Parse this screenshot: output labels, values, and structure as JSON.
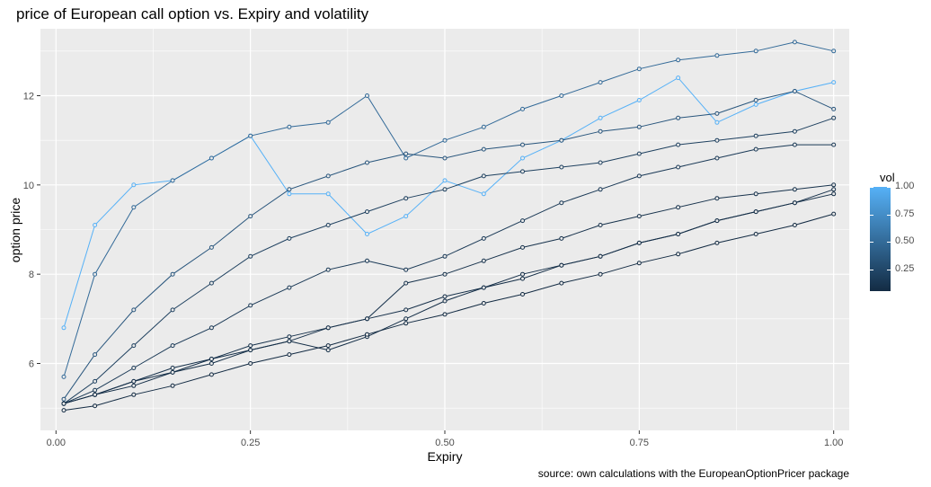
{
  "title": "price of European call option vs. Expiry and volatility",
  "caption": "source: own calculations with the EuropeanOptionPricer package",
  "chart_data": {
    "type": "line",
    "title": "price of European call option vs. Expiry and volatility",
    "xlabel": "Expiry",
    "ylabel": "option price",
    "xlim": [
      -0.02,
      1.02
    ],
    "ylim": [
      4.5,
      13.5
    ],
    "x_ticks": [
      0.0,
      0.25,
      0.5,
      0.75,
      1.0
    ],
    "x_tick_labels": [
      "0.00",
      "0.25",
      "0.50",
      "0.75",
      "1.00"
    ],
    "y_ticks": [
      6,
      8,
      10,
      12
    ],
    "y_tick_labels": [
      "6",
      "8",
      "10",
      "12"
    ],
    "grid": true,
    "markers": "open circles",
    "legend": {
      "title": "vol",
      "placement": "right",
      "type": "colorbar",
      "low_color": "#132B43",
      "high_color": "#56B1F7",
      "range": [
        0.05,
        1.0
      ],
      "ticks": [
        0.25,
        0.5,
        0.75,
        1.0
      ],
      "tick_labels": [
        "0.25",
        "0.50",
        "0.75",
        "1.00"
      ]
    },
    "x": [
      0.01,
      0.05,
      0.1,
      0.15,
      0.2,
      0.25,
      0.3,
      0.35,
      0.4,
      0.45,
      0.5,
      0.55,
      0.6,
      0.65,
      0.7,
      0.75,
      0.8,
      0.85,
      0.9,
      0.95,
      1.0
    ],
    "series": [
      {
        "vol": 1.0,
        "y": [
          6.8,
          9.1,
          10.0,
          10.1,
          10.6,
          11.1,
          9.8,
          9.8,
          8.9,
          9.3,
          10.1,
          9.8,
          10.6,
          11.0,
          11.5,
          11.9,
          12.4,
          11.4,
          11.8,
          12.1,
          12.3
        ]
      },
      {
        "vol": 0.5,
        "y": [
          5.7,
          8.0,
          9.5,
          10.1,
          10.6,
          11.1,
          11.3,
          11.4,
          12.0,
          10.6,
          11.0,
          11.3,
          11.7,
          12.0,
          12.3,
          12.6,
          12.8,
          12.9,
          13.0,
          13.2,
          13.0
        ]
      },
      {
        "vol": 0.35,
        "y": [
          5.2,
          6.2,
          7.2,
          8.0,
          8.6,
          9.3,
          9.9,
          10.2,
          10.5,
          10.7,
          10.6,
          10.8,
          10.9,
          11.0,
          11.2,
          11.3,
          11.5,
          11.6,
          11.9,
          12.1,
          11.7
        ]
      },
      {
        "vol": 0.2,
        "y": [
          5.1,
          5.6,
          6.4,
          7.2,
          7.8,
          8.4,
          8.8,
          9.1,
          9.4,
          9.7,
          9.9,
          10.2,
          10.3,
          10.4,
          10.5,
          10.7,
          10.9,
          11.0,
          11.1,
          11.2,
          11.5
        ]
      },
      {
        "vol": 0.15,
        "y": [
          5.1,
          5.4,
          5.9,
          6.4,
          6.8,
          7.3,
          7.7,
          8.1,
          8.3,
          8.1,
          8.4,
          8.8,
          9.2,
          9.6,
          9.9,
          10.2,
          10.4,
          10.6,
          10.8,
          10.9,
          10.9
        ]
      },
      {
        "vol": 0.1,
        "y": [
          5.1,
          5.3,
          5.6,
          5.9,
          6.1,
          6.4,
          6.6,
          6.8,
          7.0,
          7.8,
          8.0,
          8.3,
          8.6,
          8.8,
          9.1,
          9.3,
          9.5,
          9.7,
          9.8,
          9.9,
          10.0
        ]
      },
      {
        "vol": 0.08,
        "y": [
          5.1,
          5.3,
          5.6,
          5.8,
          6.1,
          6.3,
          6.5,
          6.8,
          7.0,
          7.2,
          7.5,
          7.7,
          8.0,
          8.2,
          8.4,
          8.7,
          8.9,
          9.2,
          9.4,
          9.6,
          9.9
        ]
      },
      {
        "vol": 0.07,
        "y": [
          5.1,
          5.3,
          5.5,
          5.8,
          6.0,
          6.3,
          6.5,
          6.3,
          6.6,
          7.0,
          7.4,
          7.7,
          7.9,
          8.2,
          8.4,
          8.7,
          8.9,
          9.2,
          9.4,
          9.6,
          9.8
        ]
      },
      {
        "vol": 0.05,
        "y": [
          4.95,
          5.05,
          5.3,
          5.5,
          5.75,
          6.0,
          6.2,
          6.4,
          6.65,
          6.9,
          7.1,
          7.35,
          7.55,
          7.8,
          8.0,
          8.25,
          8.45,
          8.7,
          8.9,
          9.1,
          9.35
        ]
      }
    ]
  }
}
